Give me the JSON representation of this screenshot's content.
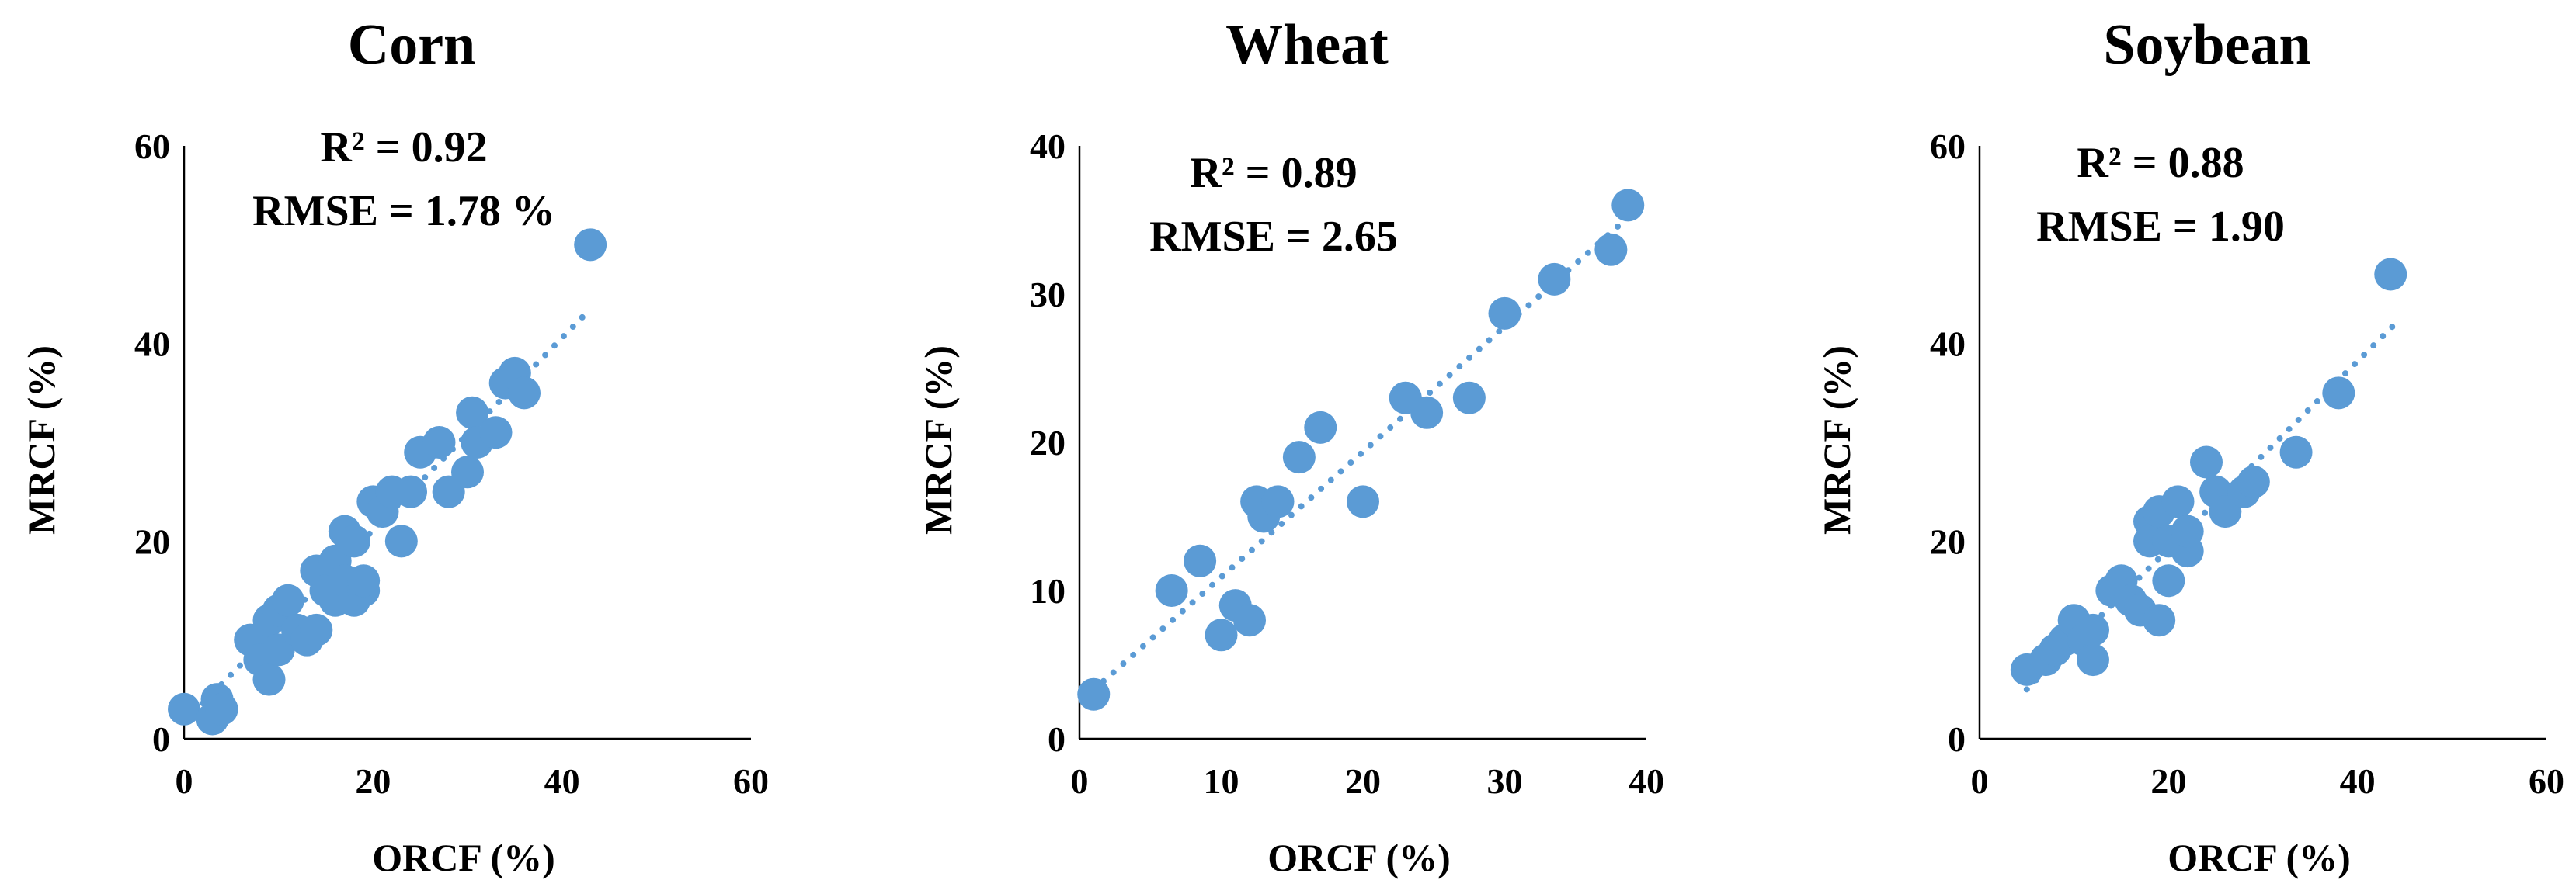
{
  "colors": {
    "point": "#5b9bd5",
    "trend": "#5b9bd5",
    "axis": "#000000"
  },
  "chart_data": [
    {
      "type": "scatter",
      "title": "Corn",
      "xlabel": "ORCF (%)",
      "ylabel": "MRCF (%)",
      "xlim": [
        0,
        60
      ],
      "ylim": [
        0,
        60
      ],
      "xticks": [
        "0",
        "20",
        "40",
        "60"
      ],
      "yticks": [
        "0",
        "20",
        "40",
        "60"
      ],
      "r2": "R² = 0.92",
      "rmse": "RMSE = 1.78 %",
      "trendline": {
        "style": "dotted",
        "x": [
          2,
          42.5
        ],
        "y": [
          3.6,
          43
        ]
      },
      "points": [
        {
          "x": 0,
          "y": 3
        },
        {
          "x": 3,
          "y": 2
        },
        {
          "x": 3.5,
          "y": 4
        },
        {
          "x": 4,
          "y": 3
        },
        {
          "x": 7,
          "y": 10
        },
        {
          "x": 8,
          "y": 8
        },
        {
          "x": 9,
          "y": 6
        },
        {
          "x": 9,
          "y": 12
        },
        {
          "x": 10,
          "y": 9
        },
        {
          "x": 10,
          "y": 13
        },
        {
          "x": 11,
          "y": 14
        },
        {
          "x": 12,
          "y": 11
        },
        {
          "x": 13,
          "y": 10
        },
        {
          "x": 14,
          "y": 17
        },
        {
          "x": 14,
          "y": 11
        },
        {
          "x": 15,
          "y": 15
        },
        {
          "x": 16,
          "y": 18
        },
        {
          "x": 16,
          "y": 14
        },
        {
          "x": 17,
          "y": 21
        },
        {
          "x": 17,
          "y": 16
        },
        {
          "x": 18,
          "y": 20
        },
        {
          "x": 18,
          "y": 14
        },
        {
          "x": 19,
          "y": 15
        },
        {
          "x": 19,
          "y": 16
        },
        {
          "x": 20,
          "y": 24
        },
        {
          "x": 21,
          "y": 23
        },
        {
          "x": 22,
          "y": 25
        },
        {
          "x": 23,
          "y": 20
        },
        {
          "x": 24,
          "y": 25
        },
        {
          "x": 25,
          "y": 29
        },
        {
          "x": 27,
          "y": 30
        },
        {
          "x": 28,
          "y": 25
        },
        {
          "x": 30,
          "y": 27
        },
        {
          "x": 30.5,
          "y": 33
        },
        {
          "x": 31,
          "y": 30
        },
        {
          "x": 33,
          "y": 31
        },
        {
          "x": 34,
          "y": 36
        },
        {
          "x": 35,
          "y": 37
        },
        {
          "x": 36,
          "y": 35
        },
        {
          "x": 43,
          "y": 50
        }
      ]
    },
    {
      "type": "scatter",
      "title": "Wheat",
      "xlabel": "ORCF (%)",
      "ylabel": "MRCF (%)",
      "xlim": [
        0,
        40
      ],
      "ylim": [
        0,
        40
      ],
      "xticks": [
        "0",
        "10",
        "20",
        "30",
        "40"
      ],
      "yticks": [
        "0",
        "10",
        "20",
        "30",
        "40"
      ],
      "r2": "R² = 0.89",
      "rmse": "RMSE = 2.65",
      "trendline": {
        "style": "dotted",
        "x": [
          1,
          38.5
        ],
        "y": [
          3.3,
          35
        ]
      },
      "points": [
        {
          "x": 1,
          "y": 3
        },
        {
          "x": 6.5,
          "y": 10
        },
        {
          "x": 8.5,
          "y": 12
        },
        {
          "x": 10,
          "y": 7
        },
        {
          "x": 11,
          "y": 9
        },
        {
          "x": 12,
          "y": 8
        },
        {
          "x": 12.5,
          "y": 16
        },
        {
          "x": 13,
          "y": 15
        },
        {
          "x": 14,
          "y": 16
        },
        {
          "x": 15.5,
          "y": 19
        },
        {
          "x": 17,
          "y": 21
        },
        {
          "x": 20,
          "y": 16
        },
        {
          "x": 23,
          "y": 23
        },
        {
          "x": 24.5,
          "y": 22
        },
        {
          "x": 27.5,
          "y": 23
        },
        {
          "x": 30,
          "y": 28.7
        },
        {
          "x": 33.5,
          "y": 31
        },
        {
          "x": 37.5,
          "y": 33
        },
        {
          "x": 38.7,
          "y": 36
        }
      ]
    },
    {
      "type": "scatter",
      "title": "Soybean",
      "xlabel": "ORCF (%)",
      "ylabel": "MRCF (%)",
      "xlim": [
        0,
        60
      ],
      "ylim": [
        0,
        60
      ],
      "xticks": [
        "0",
        "20",
        "40",
        "60"
      ],
      "yticks": [
        "0",
        "20",
        "40",
        "60"
      ],
      "r2": "R² = 0.88",
      "rmse": "RMSE = 1.90",
      "trendline": {
        "style": "dotted",
        "x": [
          5,
          44
        ],
        "y": [
          5,
          42
        ]
      },
      "points": [
        {
          "x": 5,
          "y": 7
        },
        {
          "x": 7,
          "y": 8
        },
        {
          "x": 8,
          "y": 9
        },
        {
          "x": 9,
          "y": 10
        },
        {
          "x": 10,
          "y": 12
        },
        {
          "x": 11,
          "y": 10
        },
        {
          "x": 12,
          "y": 8
        },
        {
          "x": 12,
          "y": 11
        },
        {
          "x": 14,
          "y": 15
        },
        {
          "x": 15,
          "y": 16
        },
        {
          "x": 16,
          "y": 14
        },
        {
          "x": 17,
          "y": 13
        },
        {
          "x": 18,
          "y": 22
        },
        {
          "x": 18,
          "y": 20
        },
        {
          "x": 19,
          "y": 23
        },
        {
          "x": 19,
          "y": 12
        },
        {
          "x": 20,
          "y": 16
        },
        {
          "x": 20,
          "y": 20
        },
        {
          "x": 21,
          "y": 24
        },
        {
          "x": 22,
          "y": 19
        },
        {
          "x": 22,
          "y": 21
        },
        {
          "x": 24,
          "y": 28
        },
        {
          "x": 25,
          "y": 25
        },
        {
          "x": 26,
          "y": 23
        },
        {
          "x": 28,
          "y": 25
        },
        {
          "x": 29,
          "y": 26
        },
        {
          "x": 33.5,
          "y": 29
        },
        {
          "x": 38,
          "y": 35
        },
        {
          "x": 43.5,
          "y": 47
        }
      ]
    }
  ]
}
